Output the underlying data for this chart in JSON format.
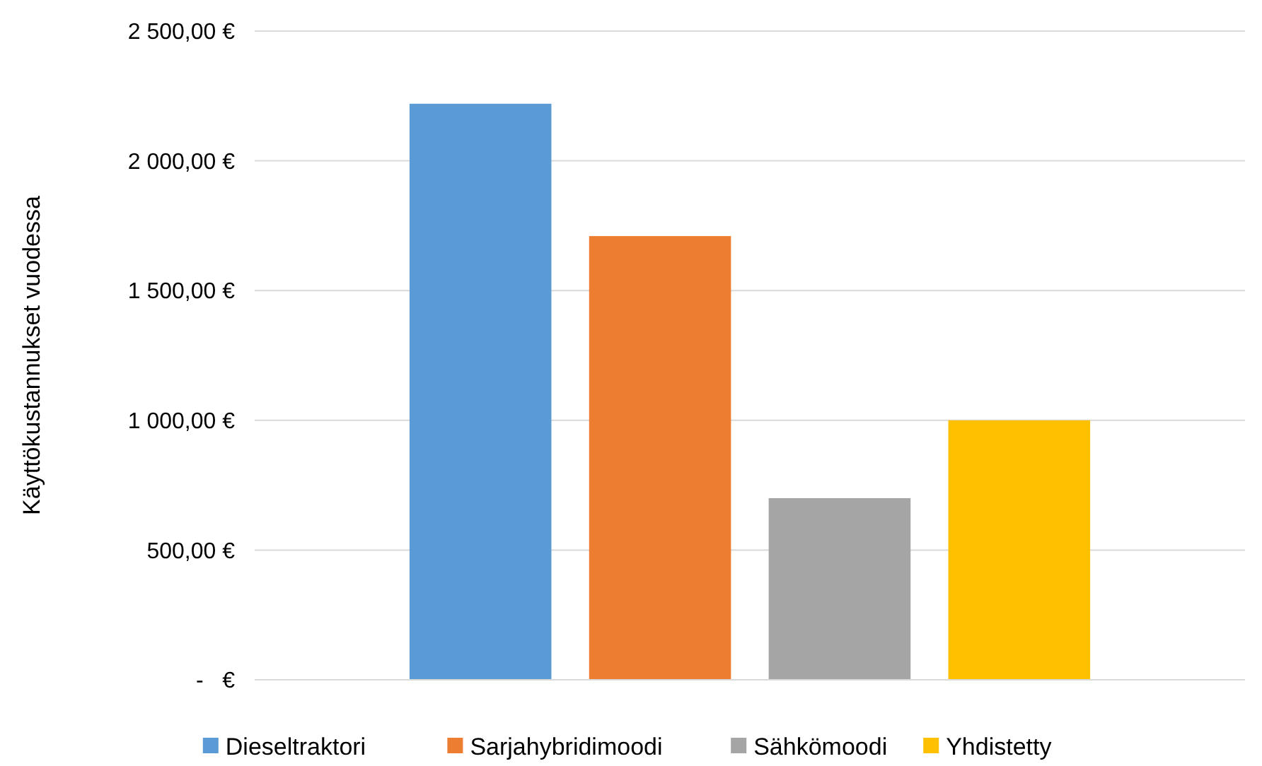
{
  "chart_data": {
    "type": "bar",
    "ylabel": "Käyttökustannukset vuodessa",
    "categories": [
      null
    ],
    "series": [
      {
        "name": "Dieseltraktori",
        "color": "#5b9bd5",
        "values": [
          2220
        ]
      },
      {
        "name": "Sarjahybridimoodi",
        "color": "#ed7d31",
        "values": [
          1710
        ]
      },
      {
        "name": "Sähkömoodi",
        "color": "#a5a5a5",
        "values": [
          700
        ]
      },
      {
        "name": "Yhdistetty",
        "color": "#ffc000",
        "values": [
          1000
        ]
      }
    ],
    "ylim": [
      0,
      2500
    ],
    "yticks": [
      {
        "value": 0,
        "label": "-   €"
      },
      {
        "value": 500,
        "label": "500,00 €"
      },
      {
        "value": 1000,
        "label": "1 000,00 €"
      },
      {
        "value": 1500,
        "label": "1 500,00 €"
      },
      {
        "value": 2000,
        "label": "2 000,00 €"
      },
      {
        "value": 2500,
        "label": "2 500,00 €"
      }
    ],
    "grid": "y",
    "legend": "bottom"
  }
}
